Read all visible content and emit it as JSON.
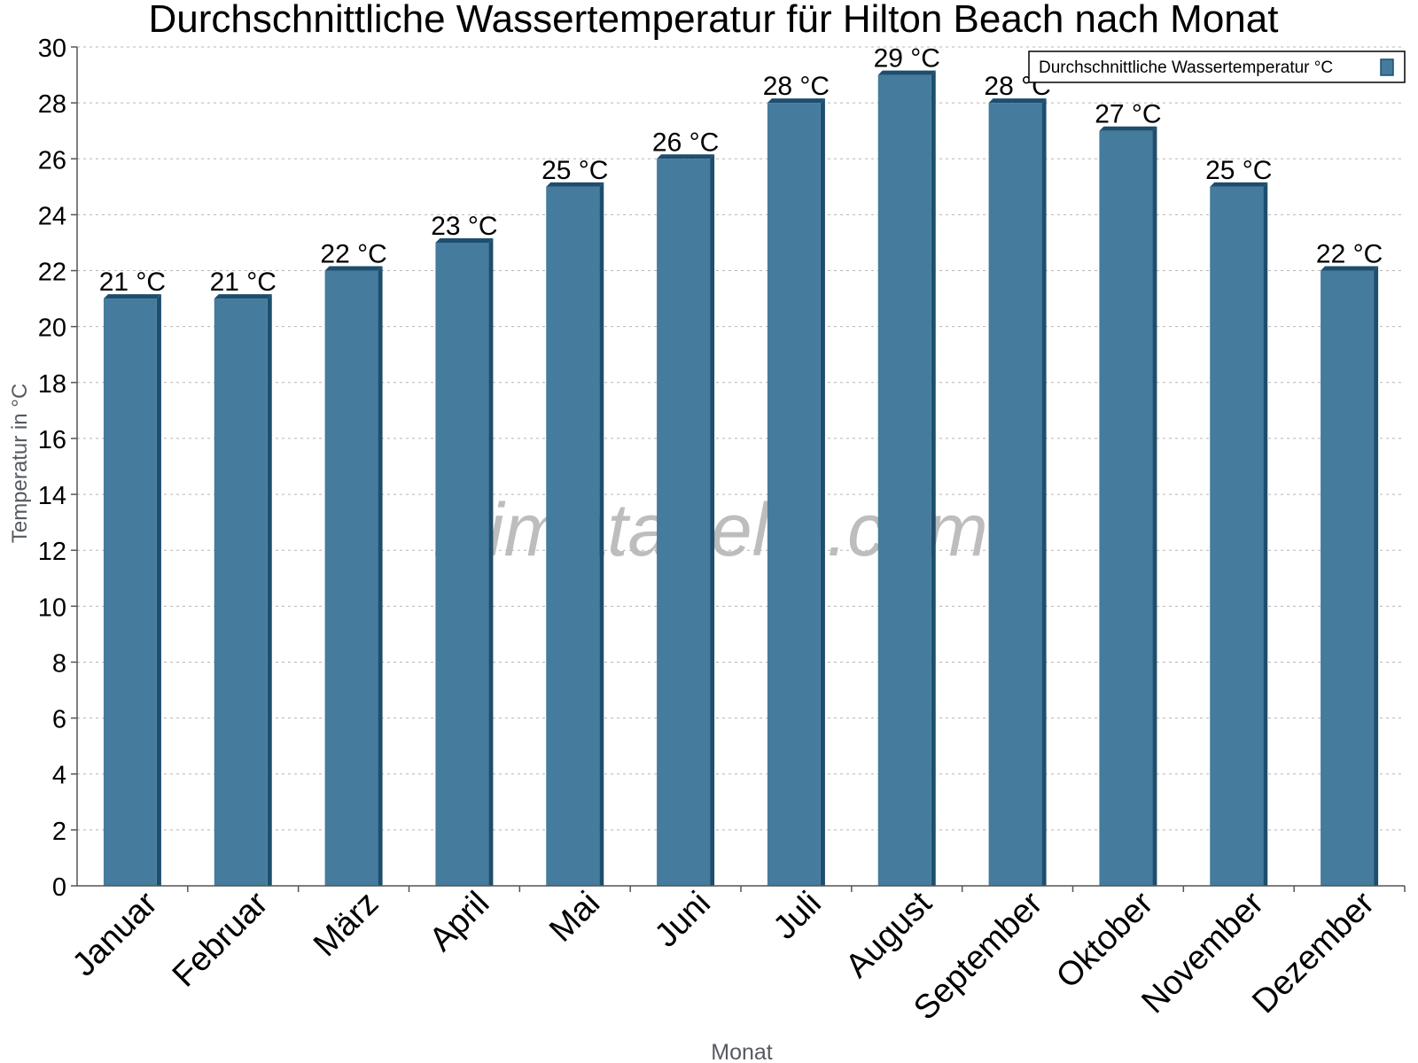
{
  "watermark": "klimatabelle.com",
  "chart_data": {
    "type": "bar",
    "title": "Durchschnittliche Wassertemperatur für Hilton Beach nach Monat",
    "xlabel": "Monat",
    "ylabel": "Temperatur in °C",
    "categories": [
      "Januar",
      "Februar",
      "März",
      "April",
      "Mai",
      "Juni",
      "Juli",
      "August",
      "September",
      "Oktober",
      "November",
      "Dezember"
    ],
    "series": [
      {
        "name": "Durchschnittliche Wassertemperatur °C",
        "values": [
          21,
          21,
          22,
          23,
          25,
          26,
          28,
          29,
          28,
          27,
          25,
          22
        ],
        "color": "#457b9d",
        "edge_color": "#1d4e6e"
      }
    ],
    "data_labels": [
      "21 °C",
      "21 °C",
      "22 °C",
      "23 °C",
      "25 °C",
      "26 °C",
      "28 °C",
      "29 °C",
      "28 °C",
      "27 °C",
      "25 °C",
      "22 °C"
    ],
    "ylim": [
      0,
      30
    ],
    "yticks": [
      0,
      2,
      4,
      6,
      8,
      10,
      12,
      14,
      16,
      18,
      20,
      22,
      24,
      26,
      28,
      30
    ],
    "grid": true,
    "legend_position": "top-right"
  }
}
